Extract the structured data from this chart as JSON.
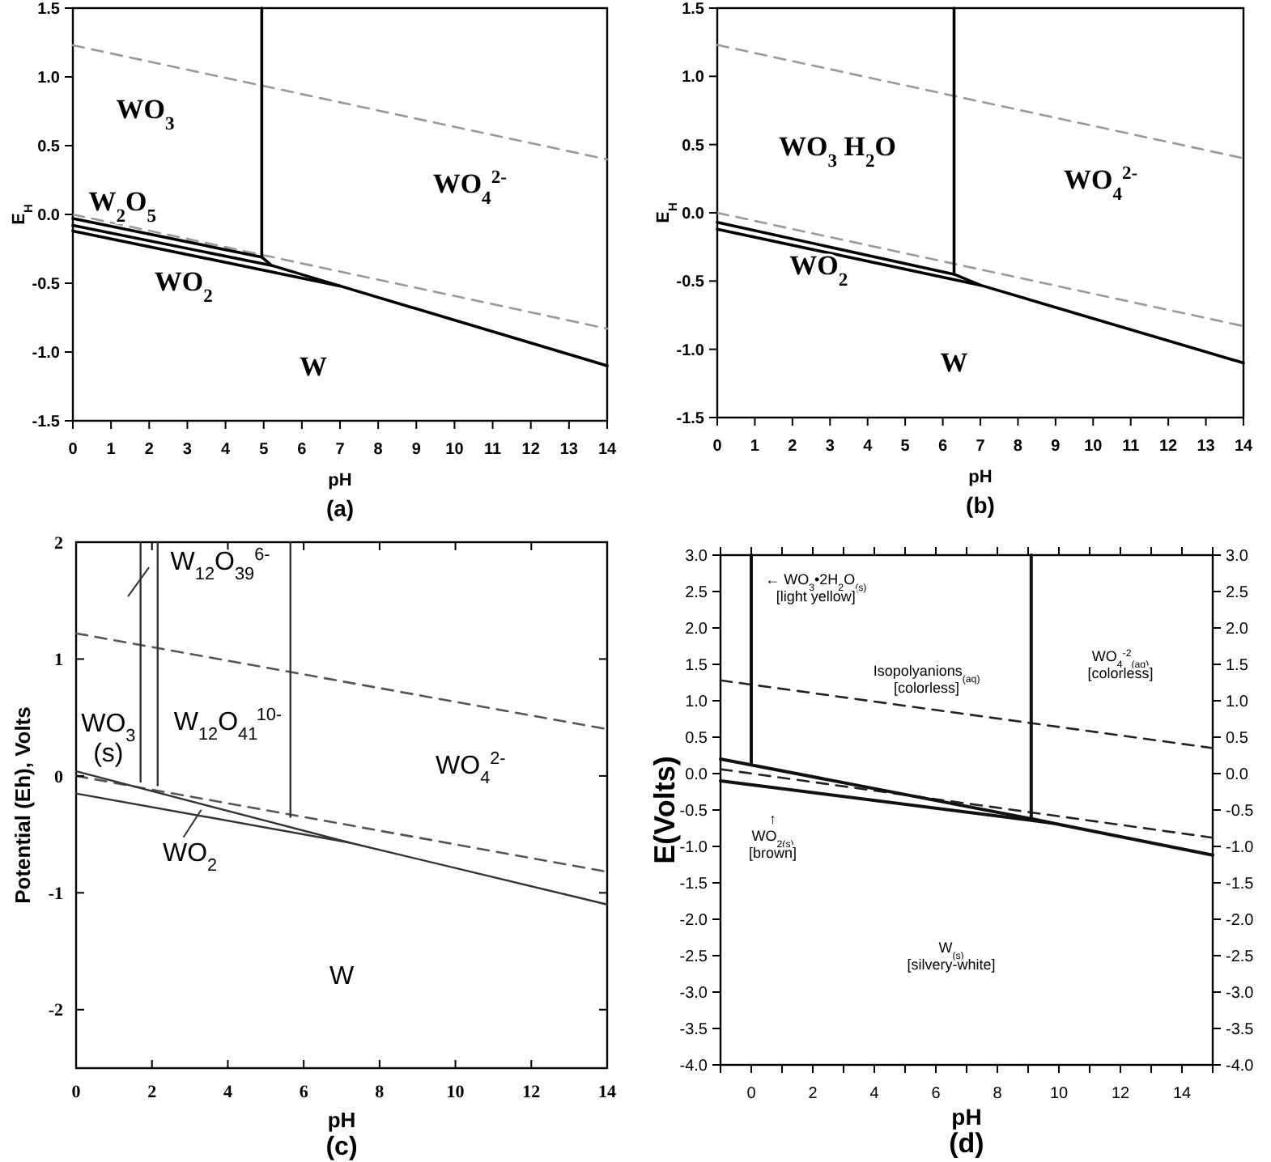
{
  "chart_data": [
    {
      "type": "line",
      "title": "(a)",
      "xlabel": "pH",
      "ylabel": "E$_{H}$",
      "xlim": [
        0,
        14
      ],
      "ylim": [
        -1.5,
        1.5
      ],
      "xticks": [
        0,
        1,
        2,
        3,
        4,
        5,
        6,
        7,
        8,
        9,
        10,
        11,
        12,
        13,
        14
      ],
      "yticks": [
        -1.5,
        {
          "value": -1,
          "label": "-1.0"
        },
        -0.5,
        {
          "value": 0,
          "label": "0.0"
        },
        0.5,
        {
          "value": 1,
          "label": "1.0"
        },
        1.5
      ],
      "series": [
        {
          "color": "#999999",
          "line_style": "dashed",
          "x": [
            0,
            14
          ],
          "values": [
            1.23,
            0.4
          ]
        },
        {
          "color": "#999999",
          "line_style": "dashed",
          "x": [
            0,
            14
          ],
          "values": [
            0,
            -0.83
          ]
        },
        {
          "color": "#000000",
          "line_style": "solid",
          "x": [
            4.95,
            4.95
          ],
          "values": [
            1.5,
            -0.31
          ]
        },
        {
          "color": "#000000",
          "line_style": "solid",
          "x": [
            0,
            4.95,
            5.2,
            7,
            14
          ],
          "values": [
            -0.03,
            -0.31,
            -0.37,
            -0.52,
            -1.1
          ]
        },
        {
          "color": "#000000",
          "line_style": "solid",
          "x": [
            0,
            5.2
          ],
          "values": [
            -0.08,
            -0.37
          ]
        },
        {
          "color": "#000000",
          "line_style": "solid",
          "x": [
            0,
            7
          ],
          "values": [
            -0.12,
            -0.52
          ]
        }
      ],
      "annotations": [
        "WO$_{3}$",
        "WO$_{4}$$^{2-}$",
        "W$_{2}$O$_{5}$",
        "WO$_{2}$",
        "W"
      ]
    },
    {
      "type": "line",
      "title": "(b)",
      "xlabel": "pH",
      "ylabel": "E$_{H}$",
      "xlim": [
        0,
        14
      ],
      "ylim": [
        -1.5,
        1.5
      ],
      "xticks": [
        0,
        1,
        2,
        3,
        4,
        5,
        6,
        7,
        8,
        9,
        10,
        11,
        12,
        13,
        14
      ],
      "yticks": [
        -1.5,
        {
          "value": -1,
          "label": "-1.0"
        },
        -0.5,
        {
          "value": 0,
          "label": "0.0"
        },
        0.5,
        {
          "value": 1,
          "label": "1.0"
        },
        1.5
      ],
      "series": [
        {
          "color": "#999999",
          "line_style": "dashed",
          "x": [
            0,
            14
          ],
          "values": [
            1.23,
            0.4
          ]
        },
        {
          "color": "#999999",
          "line_style": "dashed",
          "x": [
            0,
            14
          ],
          "values": [
            0,
            -0.83
          ]
        },
        {
          "color": "#000000",
          "line_style": "solid",
          "x": [
            6.3,
            6.3
          ],
          "values": [
            1.5,
            -0.45
          ]
        },
        {
          "color": "#000000",
          "line_style": "solid",
          "x": [
            0,
            6.3,
            7,
            14
          ],
          "values": [
            -0.07,
            -0.45,
            -0.53,
            -1.1
          ]
        },
        {
          "color": "#000000",
          "line_style": "solid",
          "x": [
            0,
            7
          ],
          "values": [
            -0.12,
            -0.53
          ]
        }
      ],
      "annotations": [
        "WO$_{3}$ H$_{2}$O",
        "WO$_{4}$$^{2-}$",
        "WO$_{2}$",
        "W"
      ]
    },
    {
      "type": "line",
      "title": "(c)",
      "xlabel": "pH",
      "ylabel": "Potential (Eh), Volts",
      "xlim": [
        0,
        14
      ],
      "ylim": [
        -2.5,
        2
      ],
      "xticks": [
        0,
        2,
        4,
        6,
        8,
        10,
        12,
        14
      ],
      "yticks": [
        -2,
        -1,
        0,
        1,
        2
      ],
      "series": [
        {
          "color": "#555555",
          "line_style": "dashed",
          "x": [
            0,
            14
          ],
          "values": [
            1.22,
            0.4
          ]
        },
        {
          "color": "#555555",
          "line_style": "dashed",
          "x": [
            0,
            14
          ],
          "values": [
            0,
            -0.82
          ]
        },
        {
          "color": "#333333",
          "line_style": "solid",
          "x": [
            1.7,
            1.7
          ],
          "values": [
            2,
            -0.05
          ]
        },
        {
          "color": "#333333",
          "line_style": "solid",
          "x": [
            2.15,
            2.15
          ],
          "values": [
            2,
            -0.08
          ]
        },
        {
          "color": "#333333",
          "line_style": "solid",
          "x": [
            5.65,
            5.65
          ],
          "values": [
            2,
            -0.35
          ]
        },
        {
          "color": "#333333",
          "line_style": "solid",
          "x": [
            0,
            7.2,
            14
          ],
          "values": [
            0.04,
            -0.57,
            -1.1
          ]
        },
        {
          "color": "#333333",
          "line_style": "solid",
          "x": [
            0,
            7.2
          ],
          "values": [
            -0.15,
            -0.57
          ]
        }
      ],
      "annotations": [
        "W$_{12}$O$_{39}$$^{6-}$",
        "WO$_{3}$\n(s)",
        "W$_{12}$O$_{41}$$^{10-}$",
        "WO$_{4}$$^{2-}$",
        "WO$_{2}$",
        "W"
      ]
    },
    {
      "type": "line",
      "title": "(d)",
      "xlabel": "pH",
      "ylabel": "E(Volts)",
      "xlim": [
        -1,
        15
      ],
      "ylim": [
        -4,
        3
      ],
      "xticks": [
        {
          "value": -1,
          "label": null
        },
        0,
        {
          "value": 1,
          "label": null
        },
        2,
        {
          "value": 3,
          "label": null
        },
        4,
        {
          "value": 5,
          "label": null
        },
        6,
        {
          "value": 7,
          "label": null
        },
        8,
        {
          "value": 9,
          "label": null
        },
        10,
        {
          "value": 11,
          "label": null
        },
        12,
        {
          "value": 13,
          "label": null
        },
        14,
        {
          "value": 15,
          "label": null
        }
      ],
      "yticks": [
        {
          "value": -4,
          "label": "-4.0"
        },
        -3.5,
        {
          "value": -3,
          "label": "-3.0"
        },
        -2.5,
        {
          "value": -2,
          "label": "-2.0"
        },
        -1.5,
        {
          "value": -1,
          "label": "-1.0"
        },
        -0.5,
        {
          "value": 0,
          "label": "0.0"
        },
        0.5,
        {
          "value": 1,
          "label": "1.0"
        },
        1.5,
        {
          "value": 2,
          "label": "2.0"
        },
        2.5,
        {
          "value": 3,
          "label": "3.0"
        }
      ],
      "y2lim": [
        -4,
        3
      ],
      "y2ticks": [
        {
          "value": -4,
          "label": "-4.0"
        },
        -3.5,
        {
          "value": -3,
          "label": "-3.0"
        },
        -2.5,
        {
          "value": -2,
          "label": "-2.0"
        },
        -1.5,
        {
          "value": -1,
          "label": "-1.0"
        },
        -0.5,
        {
          "value": 0,
          "label": "0.0"
        },
        0.5,
        {
          "value": 1,
          "label": "1.0"
        },
        1.5,
        {
          "value": 2,
          "label": "2.0"
        },
        2.5,
        {
          "value": 3,
          "label": "3.0"
        }
      ],
      "series": [
        {
          "color": "#222222",
          "line_style": "dashed",
          "x": [
            -1,
            15
          ],
          "values": [
            1.28,
            0.35
          ]
        },
        {
          "color": "#222222",
          "line_style": "dashed",
          "x": [
            -1,
            15
          ],
          "values": [
            0.06,
            -0.88
          ]
        },
        {
          "color": "#111111",
          "line_style": "solid",
          "x": [
            0,
            0
          ],
          "values": [
            3,
            0.15
          ]
        },
        {
          "color": "#111111",
          "line_style": "solid",
          "x": [
            9.1,
            9.1
          ],
          "values": [
            3,
            -0.62
          ]
        },
        {
          "color": "#111111",
          "line_style": "solid",
          "x": [
            -1,
            9.1,
            9.8,
            15
          ],
          "values": [
            0.2,
            -0.62,
            -0.68,
            -1.12
          ]
        },
        {
          "color": "#111111",
          "line_style": "solid",
          "x": [
            -1,
            9.8
          ],
          "values": [
            -0.1,
            -0.68
          ]
        }
      ],
      "annotations": [
        "← WO$_{3}$•2H$_{2}$O$_{(s)}$\n[light yellow]",
        "Isopolyanions$_{(aq)}$\n[colorless]",
        "WO$_{4}$$^{-2}$$_{(aq)}$\n[colorless]",
        "↑\nWO$_{2(s)}$\n[brown]",
        "W$_{(s)}$\n[silvery-white]"
      ]
    }
  ]
}
